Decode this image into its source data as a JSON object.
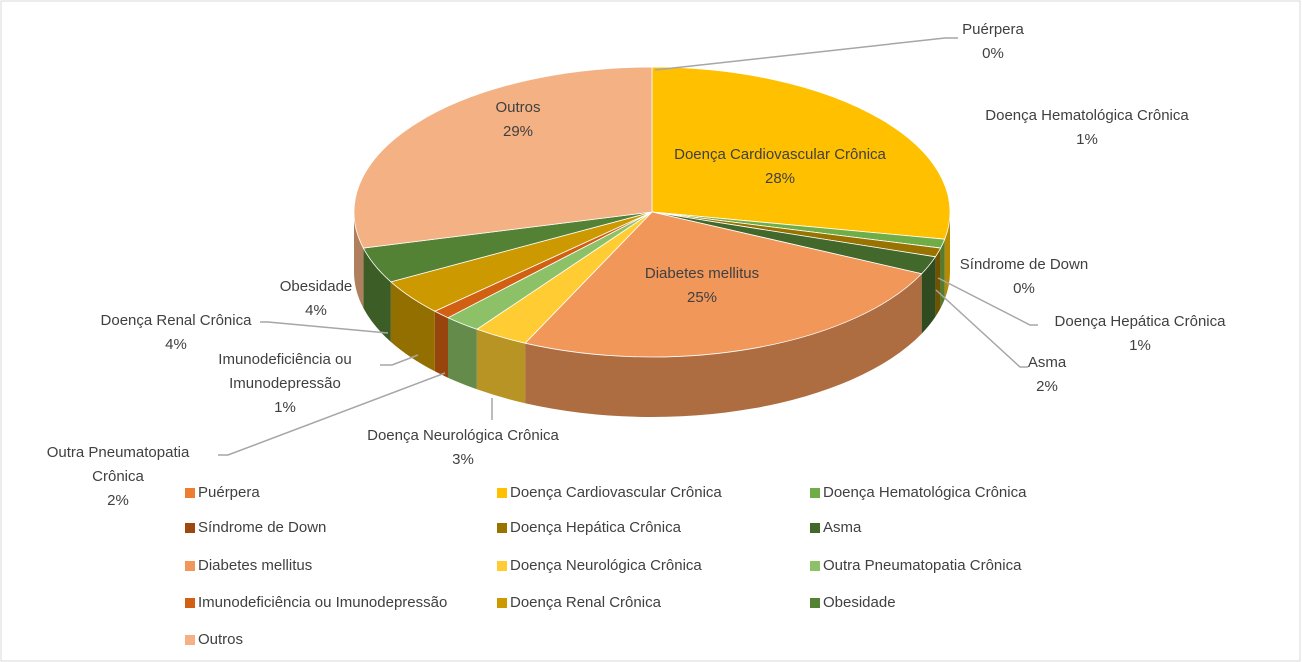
{
  "chart_data": {
    "type": "pie3d",
    "categories": [
      "Puérpera",
      "Doença Cardiovascular Crônica",
      "Doença Hematológica Crônica",
      "Síndrome de Down",
      "Doença Hepática Crônica",
      "Asma",
      "Diabetes mellitus",
      "Doença Neurológica Crônica",
      "Outra Pneumatopatia Crônica",
      "Imunodeficiência ou Imunodepressão",
      "Doença Renal Crônica",
      "Obesidade",
      "Outros"
    ],
    "values": [
      0,
      28,
      1,
      0,
      1,
      2,
      25,
      3,
      2,
      1,
      4,
      4,
      29
    ],
    "value_labels": [
      "0%",
      "28%",
      "1%",
      "0%",
      "1%",
      "2%",
      "25%",
      "3%",
      "2%",
      "1%",
      "4%",
      "4%",
      "29%"
    ],
    "colors": [
      "#ed7d31",
      "#ffc000",
      "#70ad47",
      "#9e480e",
      "#997300",
      "#43682b",
      "#f1975a",
      "#ffcd33",
      "#8cc168",
      "#d26012",
      "#cc9a00",
      "#548235",
      "#f4b183"
    ],
    "legend": "bottom"
  }
}
